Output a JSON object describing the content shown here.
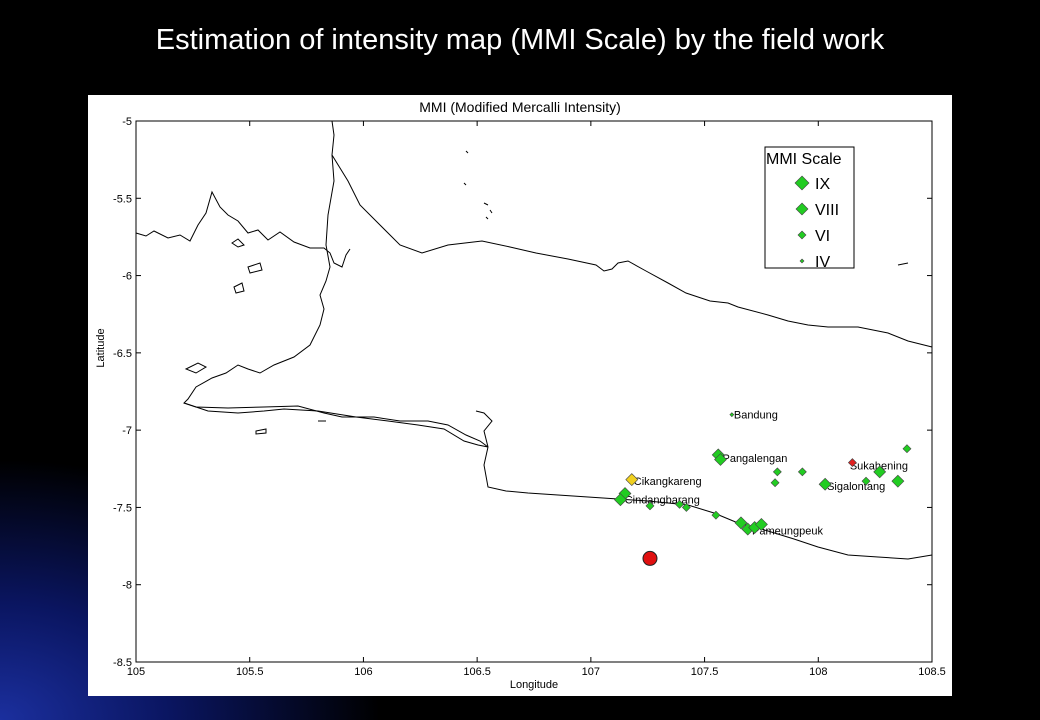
{
  "slide": {
    "title": "Estimation of intensity map (MMI Scale) by the field work"
  },
  "map": {
    "title": "MMI (Modified Mercalli Intensity)",
    "xlabel": "Longitude",
    "ylabel": "Latitude",
    "xlim": [
      105,
      108.5
    ],
    "ylim": [
      -8.5,
      -5
    ],
    "x_ticks": [
      "105",
      "105.5",
      "106",
      "106.5",
      "107",
      "107.5",
      "108",
      "108.5"
    ],
    "y_ticks": [
      "-5",
      "-5.5",
      "-6",
      "-6.5",
      "-7",
      "-7.5",
      "-8",
      "-8.5"
    ],
    "legend": {
      "title": "MMI Scale",
      "entries": [
        {
          "label": "IX",
          "marker": "diamond",
          "color": "#22cc22"
        },
        {
          "label": "VIII",
          "marker": "diamond",
          "color": "#22cc22"
        },
        {
          "label": "VI",
          "marker": "diamond",
          "color": "#22cc22"
        },
        {
          "label": "IV",
          "marker": "diamond",
          "color": "#22cc22"
        }
      ]
    },
    "place_labels": [
      {
        "name": "Bandung",
        "lon": 107.62,
        "lat": -6.9
      },
      {
        "name": "Pangalengan",
        "lon": 107.57,
        "lat": -7.18
      },
      {
        "name": "Sukahening",
        "lon": 108.13,
        "lat": -7.23
      },
      {
        "name": "Cikangkareng",
        "lon": 107.18,
        "lat": -7.33
      },
      {
        "name": "Sigalontang",
        "lon": 108.03,
        "lat": -7.36
      },
      {
        "name": "Cindangbarang",
        "lon": 107.14,
        "lat": -7.45
      },
      {
        "name": "Pameungpeuk",
        "lon": 107.7,
        "lat": -7.65
      }
    ],
    "observations": [
      {
        "lon": 107.62,
        "lat": -6.9,
        "mmi": "IV",
        "color": "#22cc22"
      },
      {
        "lon": 107.56,
        "lat": -7.16,
        "mmi": "VIII",
        "color": "#22cc22"
      },
      {
        "lon": 107.57,
        "lat": -7.19,
        "mmi": "VIII",
        "color": "#22cc22"
      },
      {
        "lon": 108.15,
        "lat": -7.21,
        "mmi": "VI",
        "color": "#e02020"
      },
      {
        "lon": 108.39,
        "lat": -7.12,
        "mmi": "VI",
        "color": "#22cc22"
      },
      {
        "lon": 107.82,
        "lat": -7.27,
        "mmi": "VI",
        "color": "#22cc22"
      },
      {
        "lon": 107.93,
        "lat": -7.27,
        "mmi": "VI",
        "color": "#22cc22"
      },
      {
        "lon": 108.27,
        "lat": -7.27,
        "mmi": "VIII",
        "color": "#22cc22"
      },
      {
        "lon": 107.81,
        "lat": -7.34,
        "mmi": "VI",
        "color": "#22cc22"
      },
      {
        "lon": 108.03,
        "lat": -7.35,
        "mmi": "VIII",
        "color": "#22cc22"
      },
      {
        "lon": 108.21,
        "lat": -7.33,
        "mmi": "VI",
        "color": "#22cc22"
      },
      {
        "lon": 108.35,
        "lat": -7.33,
        "mmi": "VIII",
        "color": "#22cc22"
      },
      {
        "lon": 107.18,
        "lat": -7.32,
        "mmi": "VIII",
        "color": "#f0d020"
      },
      {
        "lon": 107.15,
        "lat": -7.41,
        "mmi": "VIII",
        "color": "#22cc22"
      },
      {
        "lon": 107.13,
        "lat": -7.45,
        "mmi": "VIII",
        "color": "#22cc22"
      },
      {
        "lon": 107.26,
        "lat": -7.49,
        "mmi": "VI",
        "color": "#22cc22"
      },
      {
        "lon": 107.39,
        "lat": -7.48,
        "mmi": "VI",
        "color": "#22cc22"
      },
      {
        "lon": 107.42,
        "lat": -7.5,
        "mmi": "VI",
        "color": "#22cc22"
      },
      {
        "lon": 107.55,
        "lat": -7.55,
        "mmi": "VI",
        "color": "#22cc22"
      },
      {
        "lon": 107.66,
        "lat": -7.6,
        "mmi": "VIII",
        "color": "#22cc22"
      },
      {
        "lon": 107.69,
        "lat": -7.64,
        "mmi": "VIII",
        "color": "#22cc22"
      },
      {
        "lon": 107.72,
        "lat": -7.63,
        "mmi": "VIII",
        "color": "#22cc22"
      },
      {
        "lon": 107.75,
        "lat": -7.61,
        "mmi": "VIII",
        "color": "#22cc22"
      }
    ],
    "epicenter": {
      "lon": 107.26,
      "lat": -7.83,
      "color": "#e01010"
    }
  }
}
